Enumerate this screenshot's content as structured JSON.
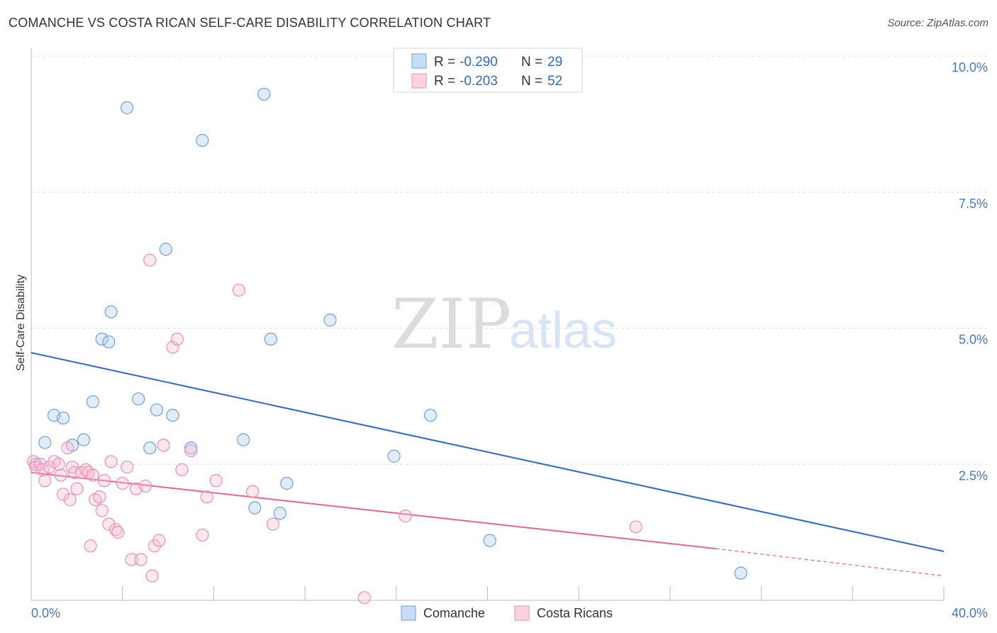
{
  "title": "COMANCHE VS COSTA RICAN SELF-CARE DISABILITY CORRELATION CHART",
  "source": "Source: ZipAtlas.com",
  "watermark": {
    "zip": "ZIP",
    "atlas": "atlas"
  },
  "colors": {
    "blue": "#6fa0e0",
    "blue_line": "#2f6cc9",
    "pink": "#f08fae",
    "pink_line": "#e8638f"
  },
  "legend": {
    "r_label": "R =",
    "n_label": "N =",
    "rows": [
      {
        "name": "Comanche",
        "r": "-0.290",
        "n": "29"
      },
      {
        "name": "Costa Ricans",
        "r": "-0.203",
        "n": "52"
      }
    ]
  },
  "chart_data": {
    "type": "scatter",
    "title": "COMANCHE VS COSTA RICAN SELF-CARE DISABILITY CORRELATION CHART",
    "xlabel": "",
    "ylabel": "Self-Care Disability",
    "xlim": [
      0,
      40
    ],
    "ylim": [
      0,
      10
    ],
    "x_tick_labels": [
      "0.0%",
      "40.0%"
    ],
    "y_tick_labels": [
      "2.5%",
      "5.0%",
      "7.5%",
      "10.0%"
    ],
    "y_ticks": [
      2.5,
      5.0,
      7.5,
      10.0
    ],
    "grid": true,
    "series": [
      {
        "name": "Comanche",
        "points": [
          [
            0.2,
            2.5
          ],
          [
            0.6,
            2.9
          ],
          [
            1.0,
            3.4
          ],
          [
            1.4,
            3.35
          ],
          [
            1.8,
            2.85
          ],
          [
            2.3,
            2.95
          ],
          [
            2.7,
            3.65
          ],
          [
            3.1,
            4.8
          ],
          [
            3.5,
            5.3
          ],
          [
            3.4,
            4.75
          ],
          [
            4.2,
            9.05
          ],
          [
            4.7,
            3.7
          ],
          [
            5.2,
            2.8
          ],
          [
            5.5,
            3.5
          ],
          [
            5.9,
            6.45
          ],
          [
            6.2,
            3.4
          ],
          [
            7.0,
            2.8
          ],
          [
            7.5,
            8.45
          ],
          [
            9.3,
            2.95
          ],
          [
            9.8,
            1.7
          ],
          [
            10.2,
            9.3
          ],
          [
            10.5,
            4.8
          ],
          [
            10.9,
            1.6
          ],
          [
            11.2,
            2.15
          ],
          [
            13.1,
            5.15
          ],
          [
            15.9,
            2.65
          ],
          [
            17.5,
            3.4
          ],
          [
            20.1,
            1.1
          ],
          [
            31.1,
            0.5
          ]
        ],
        "trend": {
          "x": [
            0,
            40
          ],
          "y": [
            4.55,
            0.9
          ]
        }
      },
      {
        "name": "Costa Ricans",
        "points": [
          [
            0.1,
            2.55
          ],
          [
            0.2,
            2.45
          ],
          [
            0.4,
            2.5
          ],
          [
            0.5,
            2.4
          ],
          [
            0.6,
            2.2
          ],
          [
            0.8,
            2.45
          ],
          [
            1.0,
            2.55
          ],
          [
            1.2,
            2.5
          ],
          [
            1.3,
            2.3
          ],
          [
            1.4,
            1.95
          ],
          [
            1.6,
            2.8
          ],
          [
            1.7,
            1.85
          ],
          [
            1.8,
            2.45
          ],
          [
            1.9,
            2.35
          ],
          [
            2.0,
            2.05
          ],
          [
            2.2,
            2.35
          ],
          [
            2.4,
            2.4
          ],
          [
            2.5,
            2.35
          ],
          [
            2.6,
            1.0
          ],
          [
            2.7,
            2.3
          ],
          [
            2.8,
            1.85
          ],
          [
            3.0,
            1.9
          ],
          [
            3.1,
            1.65
          ],
          [
            3.2,
            2.2
          ],
          [
            3.4,
            1.4
          ],
          [
            3.5,
            2.55
          ],
          [
            3.7,
            1.3
          ],
          [
            3.8,
            1.25
          ],
          [
            4.0,
            2.15
          ],
          [
            4.2,
            2.45
          ],
          [
            4.4,
            0.75
          ],
          [
            4.6,
            2.05
          ],
          [
            4.8,
            0.75
          ],
          [
            5.0,
            2.1
          ],
          [
            5.2,
            6.25
          ],
          [
            5.4,
            1.0
          ],
          [
            5.6,
            1.1
          ],
          [
            5.8,
            2.85
          ],
          [
            6.2,
            4.65
          ],
          [
            6.4,
            4.8
          ],
          [
            6.6,
            2.4
          ],
          [
            7.0,
            2.75
          ],
          [
            7.5,
            1.2
          ],
          [
            7.7,
            1.9
          ],
          [
            8.1,
            2.2
          ],
          [
            9.1,
            5.7
          ],
          [
            9.7,
            2.0
          ],
          [
            10.6,
            1.4
          ],
          [
            14.6,
            0.05
          ],
          [
            16.4,
            1.55
          ],
          [
            26.5,
            1.35
          ],
          [
            5.3,
            0.45
          ]
        ],
        "trend": {
          "x": [
            0,
            30
          ],
          "y": [
            2.35,
            0.95
          ]
        },
        "trend_dashed": {
          "x": [
            30,
            40
          ],
          "y": [
            0.95,
            0.45
          ]
        }
      }
    ]
  }
}
